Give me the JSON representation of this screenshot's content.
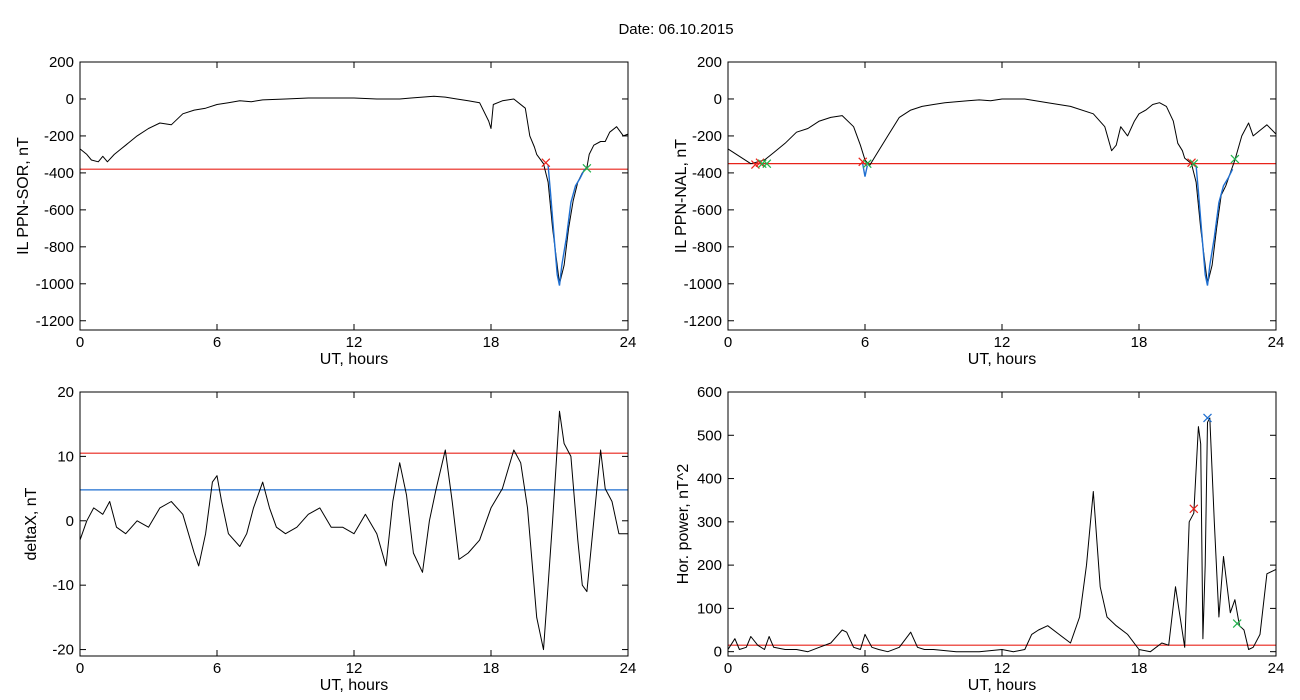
{
  "figure": {
    "title": "Date:  06.10.2015"
  },
  "chart_data": [
    {
      "type": "line",
      "id": "p1",
      "xlabel": "UT, hours",
      "ylabel": "IL PPN-SOR, nT",
      "xlim": [
        0,
        24
      ],
      "ylim": [
        -1250,
        200
      ],
      "xticks": [
        0,
        6,
        12,
        18,
        24
      ],
      "yticks": [
        200,
        0,
        -200,
        -400,
        -600,
        -800,
        -1000,
        -1200
      ],
      "series": [
        {
          "color": "#000000",
          "x": [
            0,
            0.3,
            0.5,
            0.8,
            1.0,
            1.2,
            1.5,
            1.8,
            2.0,
            2.5,
            3.0,
            3.5,
            4.0,
            4.5,
            5.0,
            5.5,
            6.0,
            6.5,
            7.0,
            7.5,
            8.0,
            9.0,
            10.0,
            11.0,
            12.0,
            13.0,
            14.0,
            14.5,
            15.0,
            15.5,
            16.0,
            16.5,
            17.0,
            17.5,
            17.9,
            18.0,
            18.1,
            18.5,
            19.0,
            19.5,
            19.7,
            19.9,
            20.0,
            20.3,
            20.5,
            20.7,
            20.9,
            21.0,
            21.2,
            21.4,
            21.6,
            21.8,
            22.0,
            22.2,
            22.3,
            22.5,
            22.8,
            23.0,
            23.2,
            23.5,
            23.8,
            24.0
          ],
          "y": [
            -270,
            -300,
            -330,
            -340,
            -310,
            -340,
            -300,
            -270,
            -250,
            -200,
            -160,
            -130,
            -140,
            -80,
            -60,
            -50,
            -30,
            -20,
            -10,
            -15,
            -5,
            0,
            5,
            5,
            5,
            0,
            0,
            5,
            10,
            15,
            10,
            0,
            -10,
            -20,
            -120,
            -160,
            -30,
            -10,
            0,
            -50,
            -200,
            -260,
            -300,
            -350,
            -450,
            -700,
            -900,
            -1000,
            -900,
            -700,
            -550,
            -450,
            -400,
            -370,
            -300,
            -250,
            -230,
            -230,
            -180,
            -150,
            -200,
            -190
          ]
        },
        {
          "color": "#1f6fd1",
          "x": [
            20.5,
            20.6,
            20.8,
            20.9,
            21.0,
            21.1,
            21.3,
            21.5,
            21.7,
            21.9,
            22.1
          ],
          "y": [
            -360,
            -500,
            -800,
            -950,
            -1010,
            -900,
            -750,
            -560,
            -470,
            -430,
            -380
          ]
        }
      ],
      "threshold_lines": [
        {
          "y": -380,
          "color": "#e8231a"
        }
      ],
      "markers": [
        {
          "x": 20.4,
          "y": -345,
          "color": "#e8231a",
          "symbol": "x"
        },
        {
          "x": 22.2,
          "y": -375,
          "color": "#22b14c",
          "symbol": "x"
        }
      ]
    },
    {
      "type": "line",
      "id": "p2",
      "xlabel": "UT, hours",
      "ylabel": "IL PPN-NAL, nT",
      "xlim": [
        0,
        24
      ],
      "ylim": [
        -1250,
        200
      ],
      "xticks": [
        0,
        6,
        12,
        18,
        24
      ],
      "yticks": [
        200,
        0,
        -200,
        -400,
        -600,
        -800,
        -1000,
        -1200
      ],
      "series": [
        {
          "color": "#000000",
          "x": [
            0,
            0.5,
            1.0,
            1.3,
            1.6,
            2.0,
            2.5,
            3.0,
            3.5,
            4.0,
            4.5,
            5.0,
            5.5,
            5.8,
            6.0,
            6.2,
            6.5,
            7.0,
            7.5,
            8.0,
            8.5,
            9.0,
            9.5,
            10.0,
            10.5,
            11.0,
            11.5,
            12.0,
            13.0,
            14.0,
            15.0,
            16.0,
            16.5,
            16.8,
            17.0,
            17.2,
            17.5,
            17.8,
            18.0,
            18.3,
            18.6,
            18.9,
            19.2,
            19.5,
            19.7,
            19.9,
            20.0,
            20.3,
            20.5,
            20.7,
            20.9,
            21.0,
            21.2,
            21.4,
            21.6,
            21.8,
            22.0,
            22.2,
            22.5,
            22.8,
            23.0,
            23.3,
            23.6,
            24.0
          ],
          "y": [
            -270,
            -310,
            -350,
            -340,
            -330,
            -290,
            -240,
            -180,
            -160,
            -120,
            -100,
            -90,
            -150,
            -250,
            -330,
            -360,
            -300,
            -200,
            -100,
            -60,
            -40,
            -30,
            -20,
            -15,
            -10,
            -5,
            -10,
            0,
            0,
            -20,
            -40,
            -80,
            -150,
            -280,
            -250,
            -150,
            -200,
            -120,
            -80,
            -60,
            -30,
            -20,
            -40,
            -120,
            -240,
            -280,
            -320,
            -350,
            -450,
            -700,
            -900,
            -1000,
            -900,
            -700,
            -520,
            -470,
            -400,
            -330,
            -200,
            -130,
            -200,
            -170,
            -140,
            -190
          ]
        },
        {
          "color": "#1f6fd1",
          "x": [
            5.9,
            6.0,
            6.1
          ],
          "y": [
            -350,
            -420,
            -360
          ]
        },
        {
          "color": "#1f6fd1",
          "x": [
            20.5,
            20.6,
            20.8,
            20.9,
            21.0,
            21.1,
            21.3,
            21.5,
            21.7,
            21.9,
            22.1
          ],
          "y": [
            -360,
            -500,
            -800,
            -950,
            -1010,
            -900,
            -750,
            -560,
            -470,
            -430,
            -380
          ]
        }
      ],
      "threshold_lines": [
        {
          "y": -350,
          "color": "#e8231a"
        }
      ],
      "markers": [
        {
          "x": 1.2,
          "y": -355,
          "color": "#e8231a",
          "symbol": "x"
        },
        {
          "x": 1.4,
          "y": -345,
          "color": "#e8231a",
          "symbol": "x"
        },
        {
          "x": 1.5,
          "y": -350,
          "color": "#22b14c",
          "symbol": "x"
        },
        {
          "x": 1.7,
          "y": -350,
          "color": "#22b14c",
          "symbol": "x"
        },
        {
          "x": 5.9,
          "y": -340,
          "color": "#e8231a",
          "symbol": "x"
        },
        {
          "x": 6.1,
          "y": -350,
          "color": "#22b14c",
          "symbol": "x"
        },
        {
          "x": 20.3,
          "y": -345,
          "color": "#e8231a",
          "symbol": "x"
        },
        {
          "x": 20.4,
          "y": -350,
          "color": "#22b14c",
          "symbol": "x"
        },
        {
          "x": 22.2,
          "y": -325,
          "color": "#22b14c",
          "symbol": "x"
        }
      ]
    },
    {
      "type": "line",
      "id": "p3",
      "xlabel": "UT, hours",
      "ylabel": "deltaX, nT",
      "xlim": [
        0,
        24
      ],
      "ylim": [
        -21,
        20
      ],
      "xticks": [
        0,
        6,
        12,
        18,
        24
      ],
      "yticks": [
        20,
        10,
        0,
        -10,
        -20
      ],
      "series": [
        {
          "color": "#000000",
          "x": [
            0,
            0.3,
            0.6,
            1.0,
            1.3,
            1.6,
            2.0,
            2.5,
            3.0,
            3.5,
            4.0,
            4.5,
            5.0,
            5.2,
            5.5,
            5.8,
            6.0,
            6.2,
            6.5,
            7.0,
            7.3,
            7.6,
            8.0,
            8.3,
            8.6,
            9.0,
            9.5,
            10.0,
            10.5,
            11.0,
            11.5,
            12.0,
            12.5,
            13.0,
            13.4,
            13.7,
            14.0,
            14.3,
            14.6,
            15.0,
            15.3,
            15.6,
            16.0,
            16.3,
            16.6,
            17.0,
            17.5,
            18.0,
            18.5,
            19.0,
            19.3,
            19.6,
            20.0,
            20.3,
            20.5,
            20.7,
            21.0,
            21.2,
            21.5,
            21.8,
            22.0,
            22.2,
            22.5,
            22.8,
            23.0,
            23.3,
            23.6,
            24.0
          ],
          "y": [
            -3,
            0,
            2,
            1,
            3,
            -1,
            -2,
            0,
            -1,
            2,
            3,
            1,
            -5,
            -7,
            -2,
            6,
            7,
            3,
            -2,
            -4,
            -2,
            2,
            6,
            2,
            -1,
            -2,
            -1,
            1,
            2,
            -1,
            -1,
            -2,
            1,
            -2,
            -7,
            3,
            9,
            4,
            -5,
            -8,
            0,
            5,
            11,
            3,
            -6,
            -5,
            -3,
            2,
            5,
            11,
            9,
            2,
            -15,
            -20,
            -10,
            0,
            17,
            12,
            10,
            -3,
            -10,
            -11,
            0,
            11,
            5,
            3,
            -2,
            -2
          ]
        }
      ],
      "threshold_lines": [
        {
          "y": 10.5,
          "color": "#e8231a"
        },
        {
          "y": 4.8,
          "color": "#1f6fd1"
        }
      ],
      "markers": []
    },
    {
      "type": "line",
      "id": "p4",
      "xlabel": "UT, hours",
      "ylabel": "Hor. power, nT^2",
      "xlim": [
        0,
        24
      ],
      "ylim": [
        -10,
        600
      ],
      "xticks": [
        0,
        6,
        12,
        18,
        24
      ],
      "yticks": [
        600,
        500,
        400,
        300,
        200,
        100,
        0
      ],
      "series": [
        {
          "color": "#000000",
          "x": [
            0,
            0.3,
            0.5,
            0.8,
            1.0,
            1.3,
            1.6,
            1.8,
            2.0,
            2.5,
            3.0,
            3.5,
            4.0,
            4.5,
            5.0,
            5.2,
            5.5,
            5.8,
            6.0,
            6.3,
            6.6,
            7.0,
            7.5,
            8.0,
            8.3,
            8.6,
            9.0,
            10.0,
            11.0,
            12.0,
            12.5,
            13.0,
            13.3,
            13.6,
            14.0,
            14.5,
            15.0,
            15.4,
            15.7,
            16.0,
            16.3,
            16.6,
            17.0,
            17.5,
            18.0,
            18.5,
            19.0,
            19.3,
            19.6,
            20.0,
            20.2,
            20.4,
            20.6,
            20.7,
            20.8,
            20.9,
            21.0,
            21.1,
            21.3,
            21.5,
            21.7,
            22.0,
            22.2,
            22.4,
            22.6,
            22.8,
            23.0,
            23.3,
            23.6,
            24.0
          ],
          "y": [
            5,
            30,
            5,
            10,
            35,
            15,
            5,
            35,
            10,
            5,
            5,
            0,
            10,
            20,
            50,
            45,
            10,
            5,
            40,
            10,
            5,
            0,
            10,
            45,
            10,
            5,
            5,
            0,
            0,
            5,
            0,
            5,
            40,
            50,
            60,
            40,
            20,
            80,
            200,
            370,
            150,
            80,
            60,
            40,
            5,
            0,
            20,
            15,
            150,
            10,
            300,
            320,
            520,
            480,
            30,
            200,
            530,
            540,
            300,
            80,
            220,
            90,
            120,
            60,
            50,
            5,
            10,
            40,
            180,
            190
          ]
        }
      ],
      "threshold_lines": [
        {
          "y": 15,
          "color": "#e8231a"
        }
      ],
      "markers": [
        {
          "x": 20.4,
          "y": 330,
          "color": "#e8231a",
          "symbol": "x"
        },
        {
          "x": 21.0,
          "y": 540,
          "color": "#1f6fd1",
          "symbol": "x"
        },
        {
          "x": 22.3,
          "y": 65,
          "color": "#22b14c",
          "symbol": "x"
        }
      ]
    }
  ]
}
